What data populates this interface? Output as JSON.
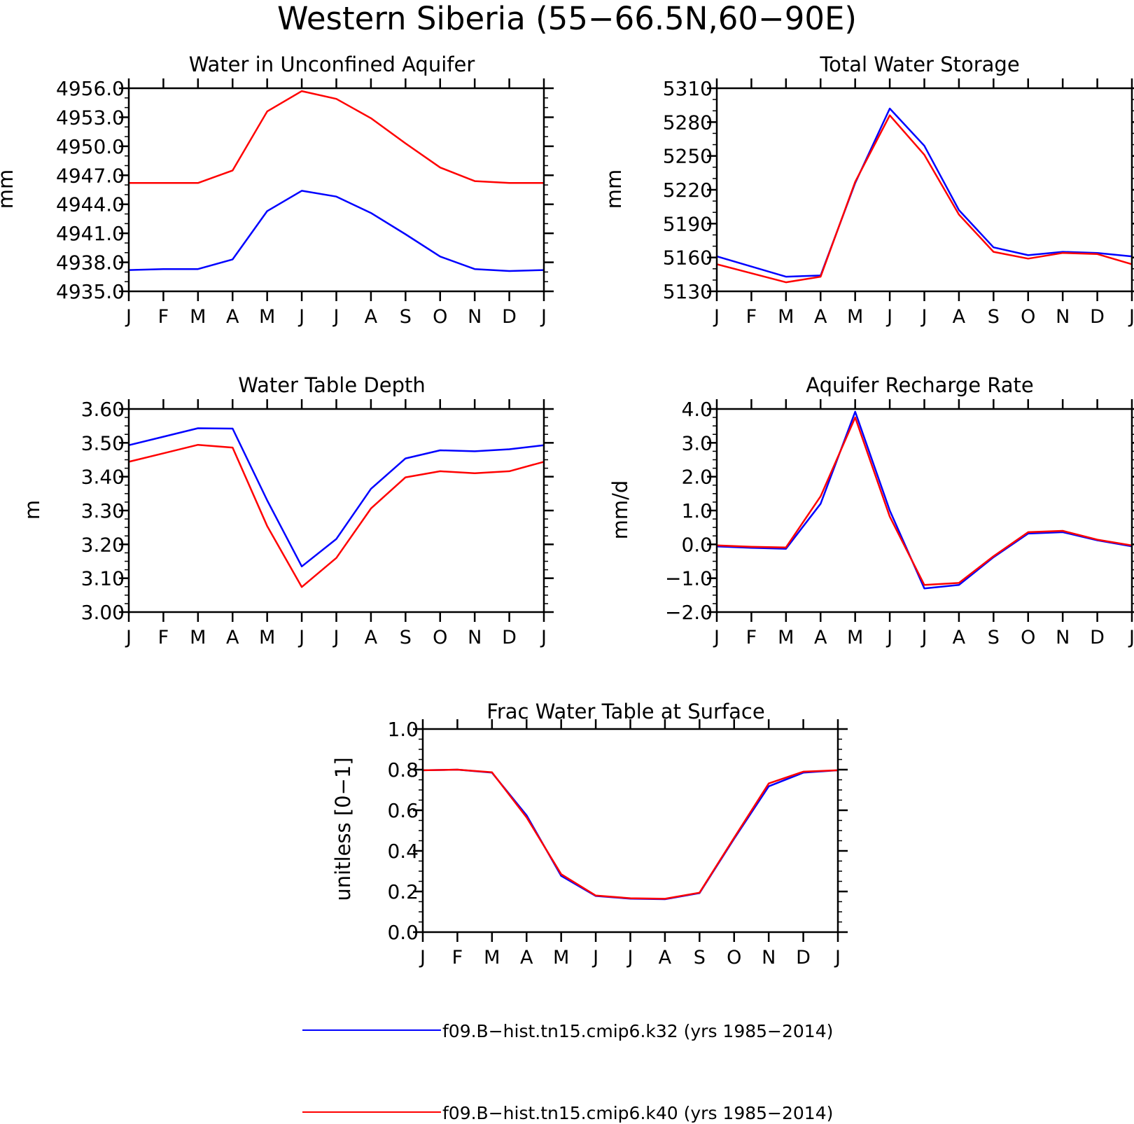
{
  "figure": {
    "title": "Western Siberia (55−66.5N,60−90E)",
    "legend": [
      {
        "label": "f09.B−hist.tn15.cmip6.k32 (yrs 1985−2014)",
        "color": "#0000ff"
      },
      {
        "label": "f09.B−hist.tn15.cmip6.k40 (yrs 1985−2014)",
        "color": "#ff0000"
      }
    ]
  },
  "chart_data": [
    {
      "type": "line",
      "title": "Water in Unconfined Aquifer",
      "ylabel": "mm",
      "xlabel": "",
      "categories": [
        "J",
        "F",
        "M",
        "A",
        "M",
        "J",
        "J",
        "A",
        "S",
        "O",
        "N",
        "D",
        "J"
      ],
      "ylim": [
        4935.0,
        4956.0
      ],
      "yticks": [
        4935.0,
        4938.0,
        4941.0,
        4944.0,
        4947.0,
        4950.0,
        4953.0,
        4956.0
      ],
      "yticklabels": [
        "4935.0",
        "4938.0",
        "4941.0",
        "4944.0",
        "4947.0",
        "4950.0",
        "4953.0",
        "4956.0"
      ],
      "yminor": 1.0,
      "grid": false,
      "series": [
        {
          "name": "f09.B−hist.tn15.cmip6.k32 (yrs 1985−2014)",
          "color": "#0000ff",
          "values": [
            4937.2,
            4937.3,
            4937.3,
            4938.3,
            4943.3,
            4945.4,
            4944.8,
            4943.1,
            4940.9,
            4938.6,
            4937.3,
            4937.1,
            4937.2
          ]
        },
        {
          "name": "f09.B−hist.tn15.cmip6.k40 (yrs 1985−2014)",
          "color": "#ff0000",
          "values": [
            4946.2,
            4946.2,
            4946.2,
            4947.5,
            4953.6,
            4955.7,
            4954.9,
            4952.9,
            4950.3,
            4947.8,
            4946.4,
            4946.2,
            4946.2
          ]
        }
      ]
    },
    {
      "type": "line",
      "title": "Total Water Storage",
      "ylabel": "mm",
      "xlabel": "",
      "categories": [
        "J",
        "F",
        "M",
        "A",
        "M",
        "J",
        "J",
        "A",
        "S",
        "O",
        "N",
        "D",
        "J"
      ],
      "ylim": [
        5130,
        5310
      ],
      "yticks": [
        5130,
        5160,
        5190,
        5220,
        5250,
        5280,
        5310
      ],
      "yticklabels": [
        "5130",
        "5160",
        "5190",
        "5220",
        "5250",
        "5280",
        "5310"
      ],
      "yminor": 10,
      "grid": false,
      "series": [
        {
          "name": "f09.B−hist.tn15.cmip6.k32 (yrs 1985−2014)",
          "color": "#0000ff",
          "values": [
            5161,
            5152,
            5143,
            5144,
            5226,
            5292,
            5259,
            5202,
            5169,
            5162,
            5165,
            5164,
            5161
          ]
        },
        {
          "name": "f09.B−hist.tn15.cmip6.k40 (yrs 1985−2014)",
          "color": "#ff0000",
          "values": [
            5154,
            5146,
            5138,
            5143,
            5227,
            5286,
            5251,
            5198,
            5165,
            5159,
            5164,
            5163,
            5154
          ]
        }
      ]
    },
    {
      "type": "line",
      "title": "Water Table Depth",
      "ylabel": "m",
      "xlabel": "",
      "categories": [
        "J",
        "F",
        "M",
        "A",
        "M",
        "J",
        "J",
        "A",
        "S",
        "O",
        "N",
        "D",
        "J"
      ],
      "ylim": [
        3.0,
        3.6
      ],
      "yticks": [
        3.0,
        3.1,
        3.2,
        3.3,
        3.4,
        3.5,
        3.6
      ],
      "yticklabels": [
        "3.00",
        "3.10",
        "3.20",
        "3.30",
        "3.40",
        "3.50",
        "3.60"
      ],
      "yminor": 0.025,
      "grid": false,
      "series": [
        {
          "name": "f09.B−hist.tn15.cmip6.k32 (yrs 1985−2014)",
          "color": "#0000ff",
          "values": [
            3.493,
            3.518,
            3.543,
            3.542,
            3.33,
            3.135,
            3.216,
            3.364,
            3.454,
            3.478,
            3.475,
            3.481,
            3.493
          ]
        },
        {
          "name": "f09.B−hist.tn15.cmip6.k40 (yrs 1985−2014)",
          "color": "#ff0000",
          "values": [
            3.444,
            3.469,
            3.494,
            3.486,
            3.254,
            3.074,
            3.16,
            3.306,
            3.398,
            3.416,
            3.41,
            3.416,
            3.444
          ]
        }
      ]
    },
    {
      "type": "line",
      "title": "Aquifer Recharge Rate",
      "ylabel": "mm/d",
      "xlabel": "",
      "categories": [
        "J",
        "F",
        "M",
        "A",
        "M",
        "J",
        "J",
        "A",
        "S",
        "O",
        "N",
        "D",
        "J"
      ],
      "ylim": [
        -2.0,
        4.0
      ],
      "yticks": [
        -2.0,
        -1.0,
        0.0,
        1.0,
        2.0,
        3.0,
        4.0
      ],
      "yticklabels": [
        "−2.0",
        "−1.0",
        "0.0",
        "1.0",
        "2.0",
        "3.0",
        "4.0"
      ],
      "yminor": 0.25,
      "grid": false,
      "series": [
        {
          "name": "f09.B−hist.tn15.cmip6.k32 (yrs 1985−2014)",
          "color": "#0000ff",
          "values": [
            -0.06,
            -0.1,
            -0.13,
            1.2,
            3.92,
            1.0,
            -1.3,
            -1.2,
            -0.38,
            0.32,
            0.36,
            0.12,
            -0.06
          ]
        },
        {
          "name": "f09.B−hist.tn15.cmip6.k40 (yrs 1985−2014)",
          "color": "#ff0000",
          "values": [
            -0.03,
            -0.07,
            -0.09,
            1.42,
            3.75,
            0.82,
            -1.2,
            -1.14,
            -0.35,
            0.36,
            0.4,
            0.14,
            -0.03
          ]
        }
      ]
    },
    {
      "type": "line",
      "title": "Frac Water Table at Surface",
      "ylabel": "unitless [0−1]",
      "xlabel": "",
      "categories": [
        "J",
        "F",
        "M",
        "A",
        "M",
        "J",
        "J",
        "A",
        "S",
        "O",
        "N",
        "D",
        "J"
      ],
      "ylim": [
        0.0,
        1.0
      ],
      "yticks": [
        0.0,
        0.2,
        0.4,
        0.6,
        0.8,
        1.0
      ],
      "yticklabels": [
        "0.0",
        "0.2",
        "0.4",
        "0.6",
        "0.8",
        "1.0"
      ],
      "yminor": 0.05,
      "grid": false,
      "series": [
        {
          "name": "f09.B−hist.tn15.cmip6.k32 (yrs 1985−2014)",
          "color": "#0000ff",
          "values": [
            0.797,
            0.8,
            0.785,
            0.575,
            0.277,
            0.178,
            0.165,
            0.162,
            0.192,
            0.46,
            0.718,
            0.785,
            0.797
          ]
        },
        {
          "name": "f09.B−hist.tn15.cmip6.k40 (yrs 1985−2014)",
          "color": "#ff0000",
          "values": [
            0.797,
            0.8,
            0.787,
            0.565,
            0.285,
            0.18,
            0.167,
            0.164,
            0.194,
            0.465,
            0.732,
            0.79,
            0.797
          ]
        }
      ]
    }
  ]
}
